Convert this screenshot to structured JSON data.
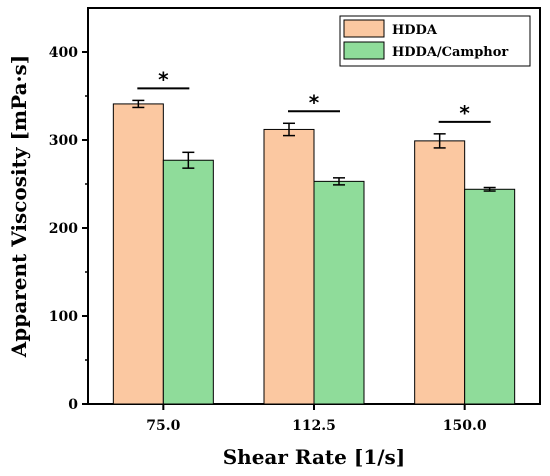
{
  "chart_data": {
    "type": "bar",
    "xlabel": "Shear Rate [1/s]",
    "ylabel": "Apparent Viscosity [mPa·s]",
    "ylim": [
      0,
      450
    ],
    "yticks": [
      0,
      100,
      200,
      300,
      400
    ],
    "categories": [
      "75.0",
      "112.5",
      "150.0"
    ],
    "series": [
      {
        "name": "HDDA",
        "values": [
          341,
          312,
          299
        ],
        "errors": [
          4,
          7,
          8
        ],
        "color": "#FBC8A1"
      },
      {
        "name": "HDDA/Camphor",
        "values": [
          277,
          253,
          244
        ],
        "errors": [
          9,
          4,
          2
        ],
        "color": "#8FDC9A"
      }
    ],
    "significance": [
      "*",
      "*",
      "*"
    ],
    "legend_position": "top-right",
    "grid": false
  }
}
